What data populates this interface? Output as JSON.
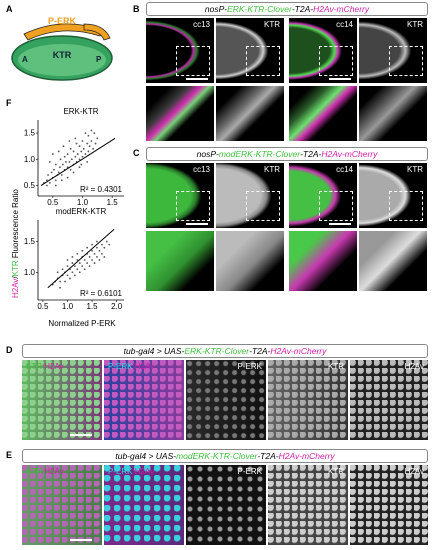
{
  "panels": {
    "A": {
      "label": "A",
      "perk": "P-ERK",
      "ktr": "KTR",
      "a": "A",
      "p": "P"
    },
    "B": {
      "label": "B",
      "hdr": {
        "p1": "nosP-",
        "p2": "ERK-KTR-Clover",
        "p3": "-T2A-",
        "p4": "H2Av-mCherry"
      },
      "imgs": [
        "cc13",
        "KTR",
        "cc14",
        "KTR"
      ]
    },
    "C": {
      "label": "C",
      "hdr": {
        "p1": "nosP-",
        "p2": "modERK-KTR-Clover",
        "p3": "-T2A-",
        "p4": "H2Av-mCherry"
      },
      "imgs": [
        "cc13",
        "KTR",
        "cc14",
        "KTR"
      ]
    },
    "D": {
      "label": "D",
      "hdr": {
        "p1": "tub-gal4 > UAS-",
        "p2": "ERK-KTR-Clover",
        "p3": "-T2A-",
        "p4": "H2Av-mCherry"
      },
      "imgs": [
        {
          "a": "KTR",
          "b": "H2Av"
        },
        {
          "a": "P-ERK",
          "b": "H2Av"
        },
        "P-ERK",
        "KTR",
        "H2Av"
      ]
    },
    "E": {
      "label": "E",
      "hdr": {
        "p1": "tub-gal4 > UAS-",
        "p2": "modERK-KTR-Clover",
        "p3": "-T2A-",
        "p4": "H2Av-mCherry"
      },
      "imgs": [
        {
          "a": "KTR",
          "b": "H2Av"
        },
        {
          "a": "P-ERK",
          "b": "H2Av"
        },
        "P-ERK",
        "KTR",
        "H2Av"
      ]
    },
    "F": {
      "label": "F",
      "ylabel_a": "H2Av",
      "ylabel_b": "/",
      "ylabel_c": "KTR",
      "ylabel_d": " Fluorescence Ratio",
      "xlabel": "Normalized P-ERK"
    }
  },
  "chart_data": [
    {
      "type": "scatter",
      "title": "ERK-KTR",
      "r2": "R² = 0.4301",
      "xticks": [
        "0.5",
        "1.0",
        "1.5"
      ],
      "yticks": [
        "0.5",
        "1.0",
        "1.5"
      ],
      "xlim": [
        0.25,
        1.7
      ],
      "ylim": [
        0.3,
        1.75
      ],
      "fit": {
        "x": [
          0.3,
          1.55
        ],
        "y": [
          0.5,
          1.4
        ]
      },
      "points": [
        [
          0.35,
          0.55
        ],
        [
          0.4,
          0.6
        ],
        [
          0.42,
          0.7
        ],
        [
          0.45,
          0.55
        ],
        [
          0.48,
          0.75
        ],
        [
          0.5,
          0.65
        ],
        [
          0.52,
          0.8
        ],
        [
          0.55,
          0.6
        ],
        [
          0.55,
          0.9
        ],
        [
          0.58,
          0.7
        ],
        [
          0.6,
          0.75
        ],
        [
          0.62,
          0.85
        ],
        [
          0.63,
          1.0
        ],
        [
          0.65,
          0.7
        ],
        [
          0.67,
          0.9
        ],
        [
          0.7,
          0.8
        ],
        [
          0.7,
          1.05
        ],
        [
          0.72,
          0.95
        ],
        [
          0.75,
          0.85
        ],
        [
          0.75,
          1.1
        ],
        [
          0.78,
          0.95
        ],
        [
          0.8,
          0.8
        ],
        [
          0.8,
          1.2
        ],
        [
          0.82,
          1.0
        ],
        [
          0.85,
          0.9
        ],
        [
          0.85,
          1.15
        ],
        [
          0.88,
          1.05
        ],
        [
          0.9,
          0.95
        ],
        [
          0.9,
          1.3
        ],
        [
          0.92,
          1.1
        ],
        [
          0.95,
          1.0
        ],
        [
          0.95,
          1.25
        ],
        [
          0.98,
          1.15
        ],
        [
          1.0,
          1.05
        ],
        [
          1.0,
          1.35
        ],
        [
          1.02,
          1.2
        ],
        [
          1.05,
          1.1
        ],
        [
          1.08,
          1.3
        ],
        [
          1.1,
          1.15
        ],
        [
          1.1,
          1.45
        ],
        [
          1.12,
          1.25
        ],
        [
          1.15,
          1.35
        ],
        [
          1.18,
          1.2
        ],
        [
          1.2,
          1.5
        ],
        [
          1.22,
          1.3
        ],
        [
          1.25,
          1.4
        ],
        [
          0.45,
          0.95
        ],
        [
          0.5,
          1.1
        ],
        [
          0.6,
          1.15
        ],
        [
          0.65,
          0.6
        ],
        [
          0.75,
          0.65
        ],
        [
          0.85,
          0.75
        ],
        [
          0.95,
          0.85
        ],
        [
          1.05,
          1.5
        ],
        [
          1.15,
          1.55
        ],
        [
          0.4,
          0.5
        ],
        [
          0.55,
          0.5
        ],
        [
          0.68,
          1.25
        ],
        [
          0.78,
          1.35
        ],
        [
          0.88,
          1.4
        ],
        [
          0.98,
          0.9
        ],
        [
          1.08,
          0.95
        ]
      ]
    },
    {
      "type": "scatter",
      "title": "modERK-KTR",
      "r2": "R² = 0.6101",
      "xticks": [
        "0.5",
        "1.0",
        "1.5",
        "2.0"
      ],
      "yticks": [
        "1.0",
        "1.5"
      ],
      "xlim": [
        0.4,
        2.15
      ],
      "ylim": [
        0.55,
        1.85
      ],
      "fit": {
        "x": [
          0.6,
          1.95
        ],
        "y": [
          0.75,
          1.7
        ]
      },
      "points": [
        [
          0.7,
          0.8
        ],
        [
          0.75,
          0.85
        ],
        [
          0.8,
          0.9
        ],
        [
          0.85,
          0.85
        ],
        [
          0.9,
          0.95
        ],
        [
          0.95,
          1.0
        ],
        [
          1.0,
          0.95
        ],
        [
          1.0,
          1.1
        ],
        [
          1.05,
          1.05
        ],
        [
          1.1,
          1.0
        ],
        [
          1.1,
          1.15
        ],
        [
          1.15,
          1.1
        ],
        [
          1.2,
          1.2
        ],
        [
          1.2,
          1.05
        ],
        [
          1.25,
          1.15
        ],
        [
          1.3,
          1.25
        ],
        [
          1.3,
          1.1
        ],
        [
          1.35,
          1.2
        ],
        [
          1.4,
          1.3
        ],
        [
          1.4,
          1.15
        ],
        [
          1.45,
          1.25
        ],
        [
          1.5,
          1.35
        ],
        [
          1.5,
          1.2
        ],
        [
          1.55,
          1.3
        ],
        [
          1.6,
          1.4
        ],
        [
          1.6,
          1.25
        ],
        [
          1.65,
          1.35
        ],
        [
          1.7,
          1.45
        ],
        [
          1.7,
          1.3
        ],
        [
          1.75,
          1.4
        ],
        [
          1.8,
          1.5
        ],
        [
          1.85,
          1.45
        ],
        [
          0.8,
          1.0
        ],
        [
          0.9,
          1.05
        ],
        [
          1.0,
          1.2
        ],
        [
          1.1,
          1.25
        ],
        [
          1.2,
          1.3
        ],
        [
          1.3,
          1.35
        ],
        [
          1.4,
          1.4
        ],
        [
          1.5,
          1.45
        ],
        [
          1.6,
          1.5
        ],
        [
          0.85,
          0.75
        ],
        [
          0.95,
          0.85
        ],
        [
          1.05,
          0.9
        ],
        [
          1.15,
          0.95
        ],
        [
          1.25,
          1.0
        ],
        [
          1.35,
          1.05
        ],
        [
          1.45,
          1.1
        ],
        [
          1.55,
          1.15
        ],
        [
          1.65,
          1.2
        ],
        [
          1.75,
          1.25
        ]
      ]
    }
  ],
  "colors": {
    "green": "#3fbf3f",
    "magenta": "#d21fa8",
    "cyan": "#2fd5e6",
    "orange": "#f0a020",
    "embryo": "#35a35f"
  }
}
